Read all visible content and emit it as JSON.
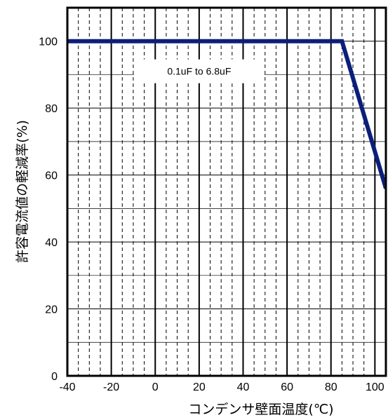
{
  "chart_data": {
    "type": "line",
    "title": "",
    "xlabel": "コンデンサ壁面温度(℃)",
    "ylabel": "許容電流値の軽減率(%)",
    "xlim": [
      -40,
      105
    ],
    "ylim": [
      0,
      110
    ],
    "x_ticks": [
      -40,
      -20,
      0,
      20,
      40,
      60,
      80,
      100
    ],
    "y_ticks": [
      0,
      20,
      40,
      60,
      80,
      100
    ],
    "grid": true,
    "series": [
      {
        "name": "",
        "color": "#0b1f7a",
        "x": [
          -40,
          85,
          105
        ],
        "y": [
          100,
          100,
          56
        ]
      }
    ],
    "annotations": [
      {
        "text": "0.1uF to 6.8uF",
        "x": 20,
        "y": 91
      }
    ]
  }
}
